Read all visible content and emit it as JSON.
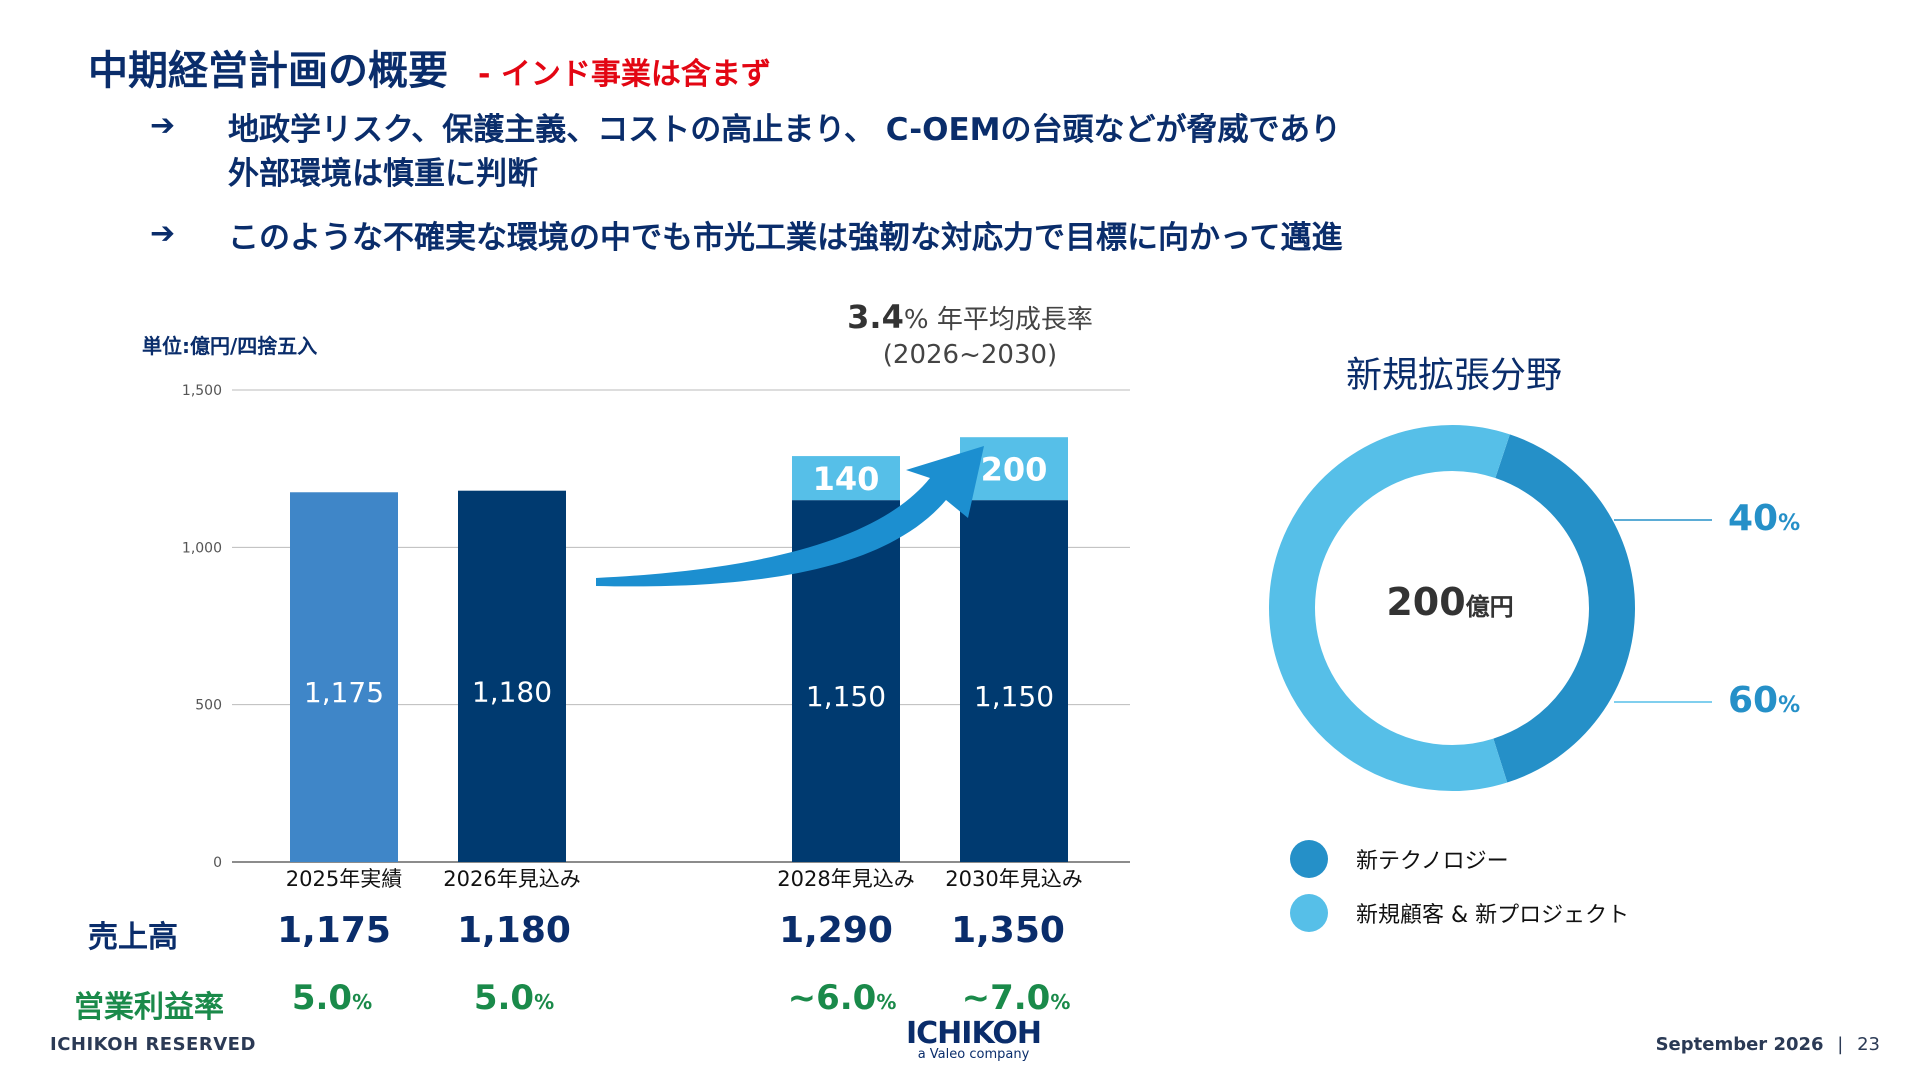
{
  "header": {
    "title": "中期経営計画の概要",
    "subtitle": "- インド事業は含まず"
  },
  "bullets": [
    {
      "arrow": "➔",
      "text": "地政学リスク、保護主義、コストの高止まり、 C-OEMの台頭などが脅威であり\n外部環境は慎重に判断"
    },
    {
      "arrow": "➔",
      "text": "このような不確実な環境の中でも市光工業は強靭な対応力で目標に向かって邁進"
    }
  ],
  "unit_label": "単位:億円/四捨五入",
  "cagr": {
    "value": "3.4",
    "suffix": "% 年平均成長率",
    "period": "(2026~2030)"
  },
  "chart_data": {
    "type": "bar",
    "categories": [
      "2025年実績",
      "2026年見込み",
      "2028年見込み",
      "2030年見込み"
    ],
    "series": [
      {
        "values": [
          1175,
          1180,
          1150,
          1150
        ],
        "labels": [
          "1,175",
          "1,180",
          "1,150",
          "1,150"
        ]
      },
      {
        "values": [
          0,
          0,
          140,
          200
        ],
        "labels": [
          "",
          "",
          "140",
          "200"
        ]
      }
    ],
    "yticks": [
      "0",
      "500",
      "1,000",
      "1,500"
    ],
    "ytick_values": [
      0,
      500,
      1000,
      1500
    ],
    "ylim": [
      0,
      1500
    ],
    "grid": true,
    "colors": {
      "actual": "#3f86c8",
      "base": "#003a70",
      "new": "#56bfe8",
      "arrow": "#1c8fd0"
    }
  },
  "rows": {
    "sales_label": "売上高",
    "sales": [
      "1,175",
      "1,180",
      "1,290",
      "1,350"
    ],
    "margin_label": "営業利益率",
    "margin": [
      {
        "v": "5.0",
        "u": "%"
      },
      {
        "v": "5.0",
        "u": "%"
      },
      {
        "v": "~6.0",
        "u": "%"
      },
      {
        "v": "~7.0",
        "u": "%"
      }
    ]
  },
  "donut": {
    "title": "新規拡張分野",
    "center_value": "200",
    "center_unit": "億円",
    "slices": [
      {
        "name": "新テクノロジー",
        "value": 40,
        "pct": "40",
        "color": "#2590c8"
      },
      {
        "name": "新規顧客 & 新プロジェクト",
        "value": 60,
        "pct": "60",
        "color": "#56bfe8"
      }
    ],
    "pct_symbol": "%"
  },
  "footer": {
    "left": "ICHIKOH RESERVED",
    "logo": "ICHIKOH",
    "logo_sub": "a Valeo company",
    "date": "September 2026",
    "separator": "|",
    "page": "23"
  }
}
